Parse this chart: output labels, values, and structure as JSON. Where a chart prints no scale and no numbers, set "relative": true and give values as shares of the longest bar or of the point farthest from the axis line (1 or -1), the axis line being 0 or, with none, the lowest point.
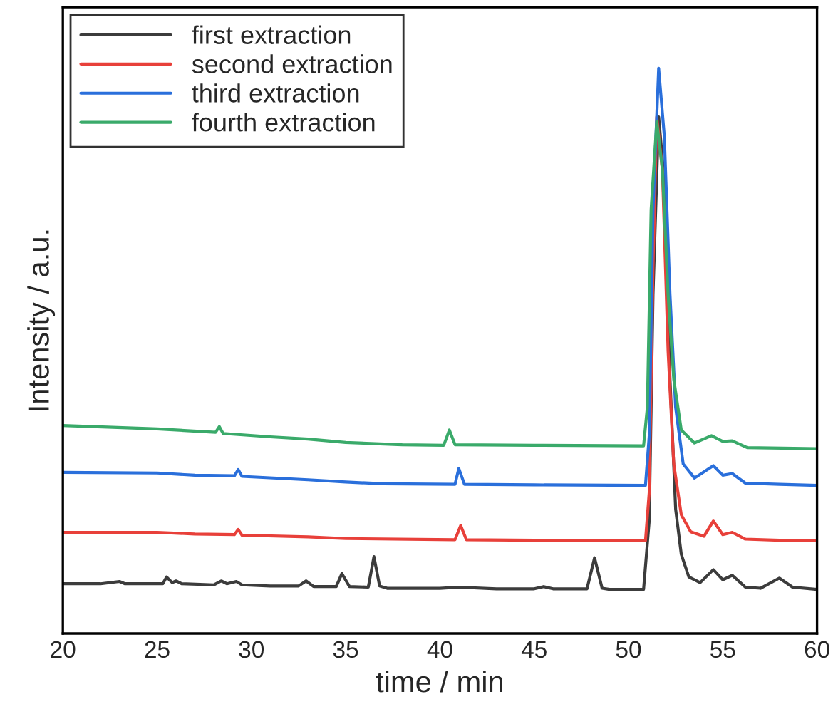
{
  "chart_data": {
    "type": "line",
    "relative": true,
    "xlabel": "time / min",
    "ylabel": "Intensity / a.u.",
    "xlim": [
      20,
      60
    ],
    "xticks": [
      20,
      25,
      30,
      35,
      40,
      45,
      50,
      55,
      60
    ],
    "legend": "top left",
    "grid": false,
    "tick_labels": "x",
    "series": [
      {
        "name": "first extraction",
        "color": "#3c3c3c",
        "x": [
          20,
          22,
          23,
          23.3,
          25.3,
          25.5,
          25.8,
          26,
          26.3,
          28,
          28.4,
          28.7,
          29.2,
          29.5,
          31,
          32.5,
          32.9,
          33.3,
          34.5,
          34.8,
          35.2,
          36.2,
          36.5,
          36.8,
          37.2,
          40,
          41,
          43,
          45,
          45.5,
          46,
          47.8,
          48.2,
          48.6,
          49,
          50.8,
          51.1,
          51.3,
          51.6,
          51.9,
          52.2,
          52.5,
          52.8,
          53.2,
          53.8,
          54.5,
          55,
          55.5,
          56.2,
          57,
          58,
          58.7,
          60
        ],
        "values": [
          0.088,
          0.088,
          0.092,
          0.088,
          0.088,
          0.1,
          0.09,
          0.093,
          0.088,
          0.086,
          0.093,
          0.088,
          0.092,
          0.086,
          0.084,
          0.084,
          0.093,
          0.083,
          0.083,
          0.106,
          0.083,
          0.082,
          0.136,
          0.084,
          0.08,
          0.08,
          0.082,
          0.079,
          0.079,
          0.083,
          0.079,
          0.079,
          0.134,
          0.08,
          0.078,
          0.078,
          0.2,
          0.6,
          0.914,
          0.8,
          0.45,
          0.22,
          0.14,
          0.1,
          0.09,
          0.113,
          0.095,
          0.103,
          0.082,
          0.08,
          0.098,
          0.082,
          0.078
        ]
      },
      {
        "name": "second extraction",
        "color": "#e8403a",
        "x": [
          20,
          25,
          27,
          29.1,
          29.3,
          29.5,
          33,
          35,
          40.8,
          41.1,
          41.4,
          45,
          50.9,
          51.1,
          51.3,
          51.5,
          51.8,
          52.1,
          52.4,
          52.8,
          53.3,
          54,
          54.5,
          55,
          55.5,
          56.2,
          58,
          60
        ],
        "values": [
          0.179,
          0.179,
          0.176,
          0.175,
          0.184,
          0.174,
          0.171,
          0.168,
          0.166,
          0.191,
          0.166,
          0.165,
          0.164,
          0.25,
          0.65,
          0.914,
          0.82,
          0.5,
          0.3,
          0.21,
          0.18,
          0.172,
          0.199,
          0.175,
          0.179,
          0.167,
          0.165,
          0.164
        ]
      },
      {
        "name": "third extraction",
        "color": "#2a6fdb",
        "x": [
          20,
          25,
          27,
          29.1,
          29.3,
          29.5,
          33,
          35,
          37,
          40.8,
          41,
          41.3,
          45,
          50.9,
          51.1,
          51.3,
          51.6,
          51.9,
          52.2,
          52.5,
          52.9,
          53.5,
          54.5,
          55,
          55.5,
          56.2,
          58,
          60
        ],
        "values": [
          0.285,
          0.284,
          0.28,
          0.279,
          0.29,
          0.278,
          0.272,
          0.268,
          0.265,
          0.264,
          0.292,
          0.264,
          0.263,
          0.262,
          0.35,
          0.75,
          1.0,
          0.88,
          0.6,
          0.4,
          0.3,
          0.275,
          0.297,
          0.28,
          0.283,
          0.266,
          0.264,
          0.262
        ]
      },
      {
        "name": "fourth extraction",
        "color": "#3aaa6a",
        "x": [
          20,
          25,
          28.1,
          28.3,
          28.5,
          31,
          33,
          35,
          38,
          40.2,
          40.5,
          40.8,
          45,
          50.8,
          51,
          51.2,
          51.5,
          51.8,
          52.1,
          52.4,
          52.8,
          53.5,
          54.4,
          55,
          55.5,
          56.3,
          60
        ],
        "values": [
          0.368,
          0.362,
          0.356,
          0.366,
          0.354,
          0.348,
          0.344,
          0.338,
          0.334,
          0.333,
          0.36,
          0.334,
          0.333,
          0.332,
          0.4,
          0.75,
          0.906,
          0.82,
          0.6,
          0.45,
          0.36,
          0.337,
          0.35,
          0.34,
          0.341,
          0.329,
          0.327
        ]
      }
    ]
  }
}
